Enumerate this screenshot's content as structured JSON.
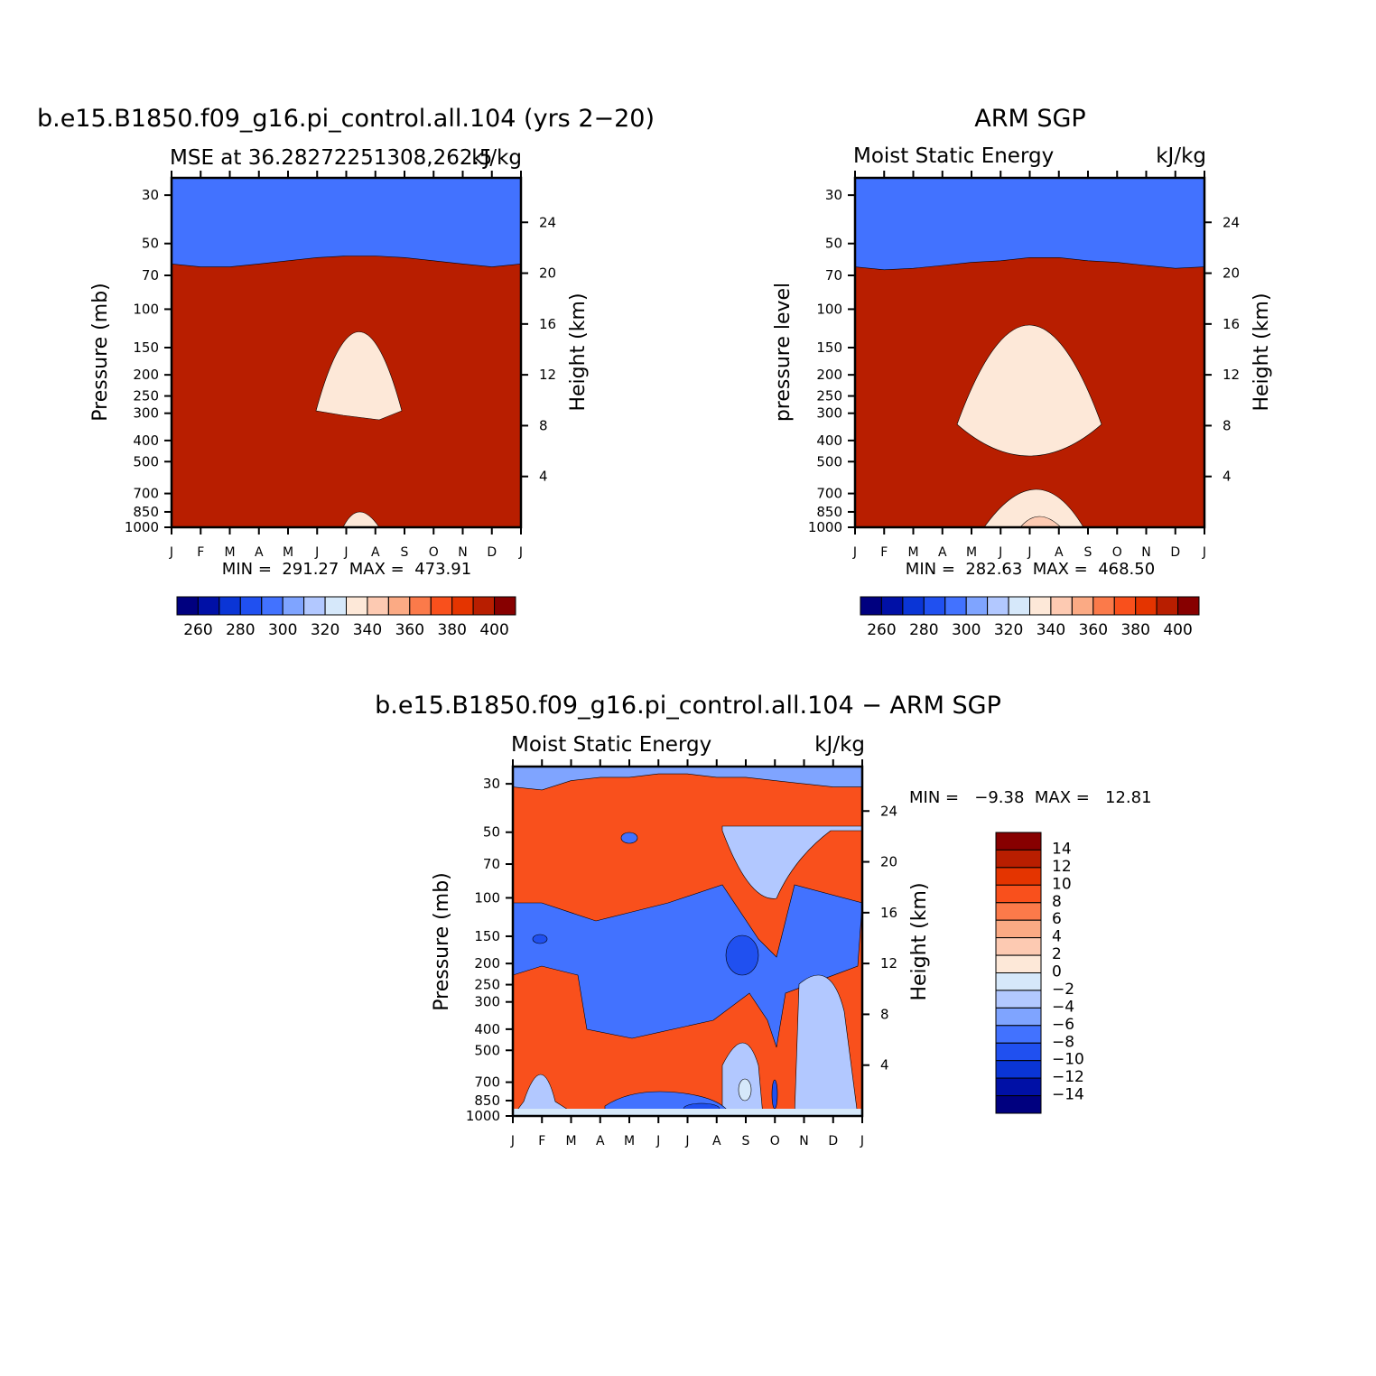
{
  "chart_data": [
    {
      "type": "heatmap",
      "title": "b.e15.B1850.f09_g16.pi_control.all.104 (yrs 2−20)",
      "subtitle_left": "MSE at 36.28272251308,262.5",
      "subtitle_right": "kJ/kg",
      "ylabel": "Pressure (mb)",
      "ylabel_right": "Height (km)",
      "x_ticks": [
        "J",
        "F",
        "M",
        "A",
        "M",
        "J",
        "J",
        "A",
        "S",
        "O",
        "N",
        "D",
        "J"
      ],
      "y_ticks": [
        "30",
        "50",
        "70",
        "100",
        "150",
        "200",
        "250",
        "300",
        "400",
        "500",
        "700",
        "850",
        "1000"
      ],
      "y_ticks_right": [
        "24",
        "20",
        "16",
        "12",
        "8",
        "4"
      ],
      "min_max_text": "MIN =  291.27  MAX =  473.91",
      "min": 291.27,
      "max": 473.91,
      "levels": [
        260,
        270,
        280,
        290,
        300,
        310,
        320,
        330,
        340,
        350,
        360,
        370,
        380,
        390,
        400
      ],
      "colorbar_labels": [
        "260",
        "280",
        "300",
        "320",
        "340",
        "360",
        "380",
        "400"
      ],
      "colors": [
        "#00007f",
        "#0010a6",
        "#0a35d6",
        "#2050f0",
        "#4272ff",
        "#7fa4ff",
        "#b2c8ff",
        "#d6e8fa",
        "#fde8d8",
        "#fdcab2",
        "#fbaa84",
        "#fb7a4a",
        "#f9501c",
        "#e43400",
        "#b81e00",
        "#870000"
      ]
    },
    {
      "type": "heatmap",
      "title": "ARM SGP",
      "subtitle_left": "Moist Static Energy",
      "subtitle_right": "kJ/kg",
      "ylabel": "pressure level",
      "ylabel_right": "Height (km)",
      "x_ticks": [
        "J",
        "F",
        "M",
        "A",
        "M",
        "J",
        "J",
        "A",
        "S",
        "O",
        "N",
        "D",
        "J"
      ],
      "y_ticks": [
        "30",
        "50",
        "70",
        "100",
        "150",
        "200",
        "250",
        "300",
        "400",
        "500",
        "700",
        "850",
        "1000"
      ],
      "y_ticks_right": [
        "24",
        "20",
        "16",
        "12",
        "8",
        "4"
      ],
      "min_max_text": "MIN =  282.63  MAX =  468.50",
      "min": 282.63,
      "max": 468.5,
      "levels": [
        260,
        270,
        280,
        290,
        300,
        310,
        320,
        330,
        340,
        350,
        360,
        370,
        380,
        390,
        400
      ],
      "colorbar_labels": [
        "260",
        "280",
        "300",
        "320",
        "340",
        "360",
        "380",
        "400"
      ]
    },
    {
      "type": "heatmap",
      "title": "b.e15.B1850.f09_g16.pi_control.all.104 − ARM SGP",
      "subtitle_left": "Moist Static Energy",
      "subtitle_right": "kJ/kg",
      "ylabel": "Pressure (mb)",
      "ylabel_right": "Height (km)",
      "x_ticks": [
        "J",
        "F",
        "M",
        "A",
        "M",
        "J",
        "J",
        "A",
        "S",
        "O",
        "N",
        "D",
        "J"
      ],
      "y_ticks": [
        "30",
        "50",
        "70",
        "100",
        "150",
        "200",
        "250",
        "300",
        "400",
        "500",
        "700",
        "850",
        "1000"
      ],
      "y_ticks_right": [
        "24",
        "20",
        "16",
        "12",
        "8",
        "4"
      ],
      "min_max_text": "MIN =   −9.38  MAX =   12.81",
      "min": -9.38,
      "max": 12.81,
      "levels": [
        -14,
        -12,
        -10,
        -8,
        -6,
        -4,
        -2,
        0,
        2,
        4,
        6,
        8,
        10,
        12,
        14
      ],
      "colorbar_labels": [
        "14",
        "12",
        "10",
        "8",
        "6",
        "4",
        "2",
        "0",
        "−2",
        "−4",
        "−6",
        "−8",
        "−10",
        "−12",
        "−14"
      ]
    }
  ]
}
